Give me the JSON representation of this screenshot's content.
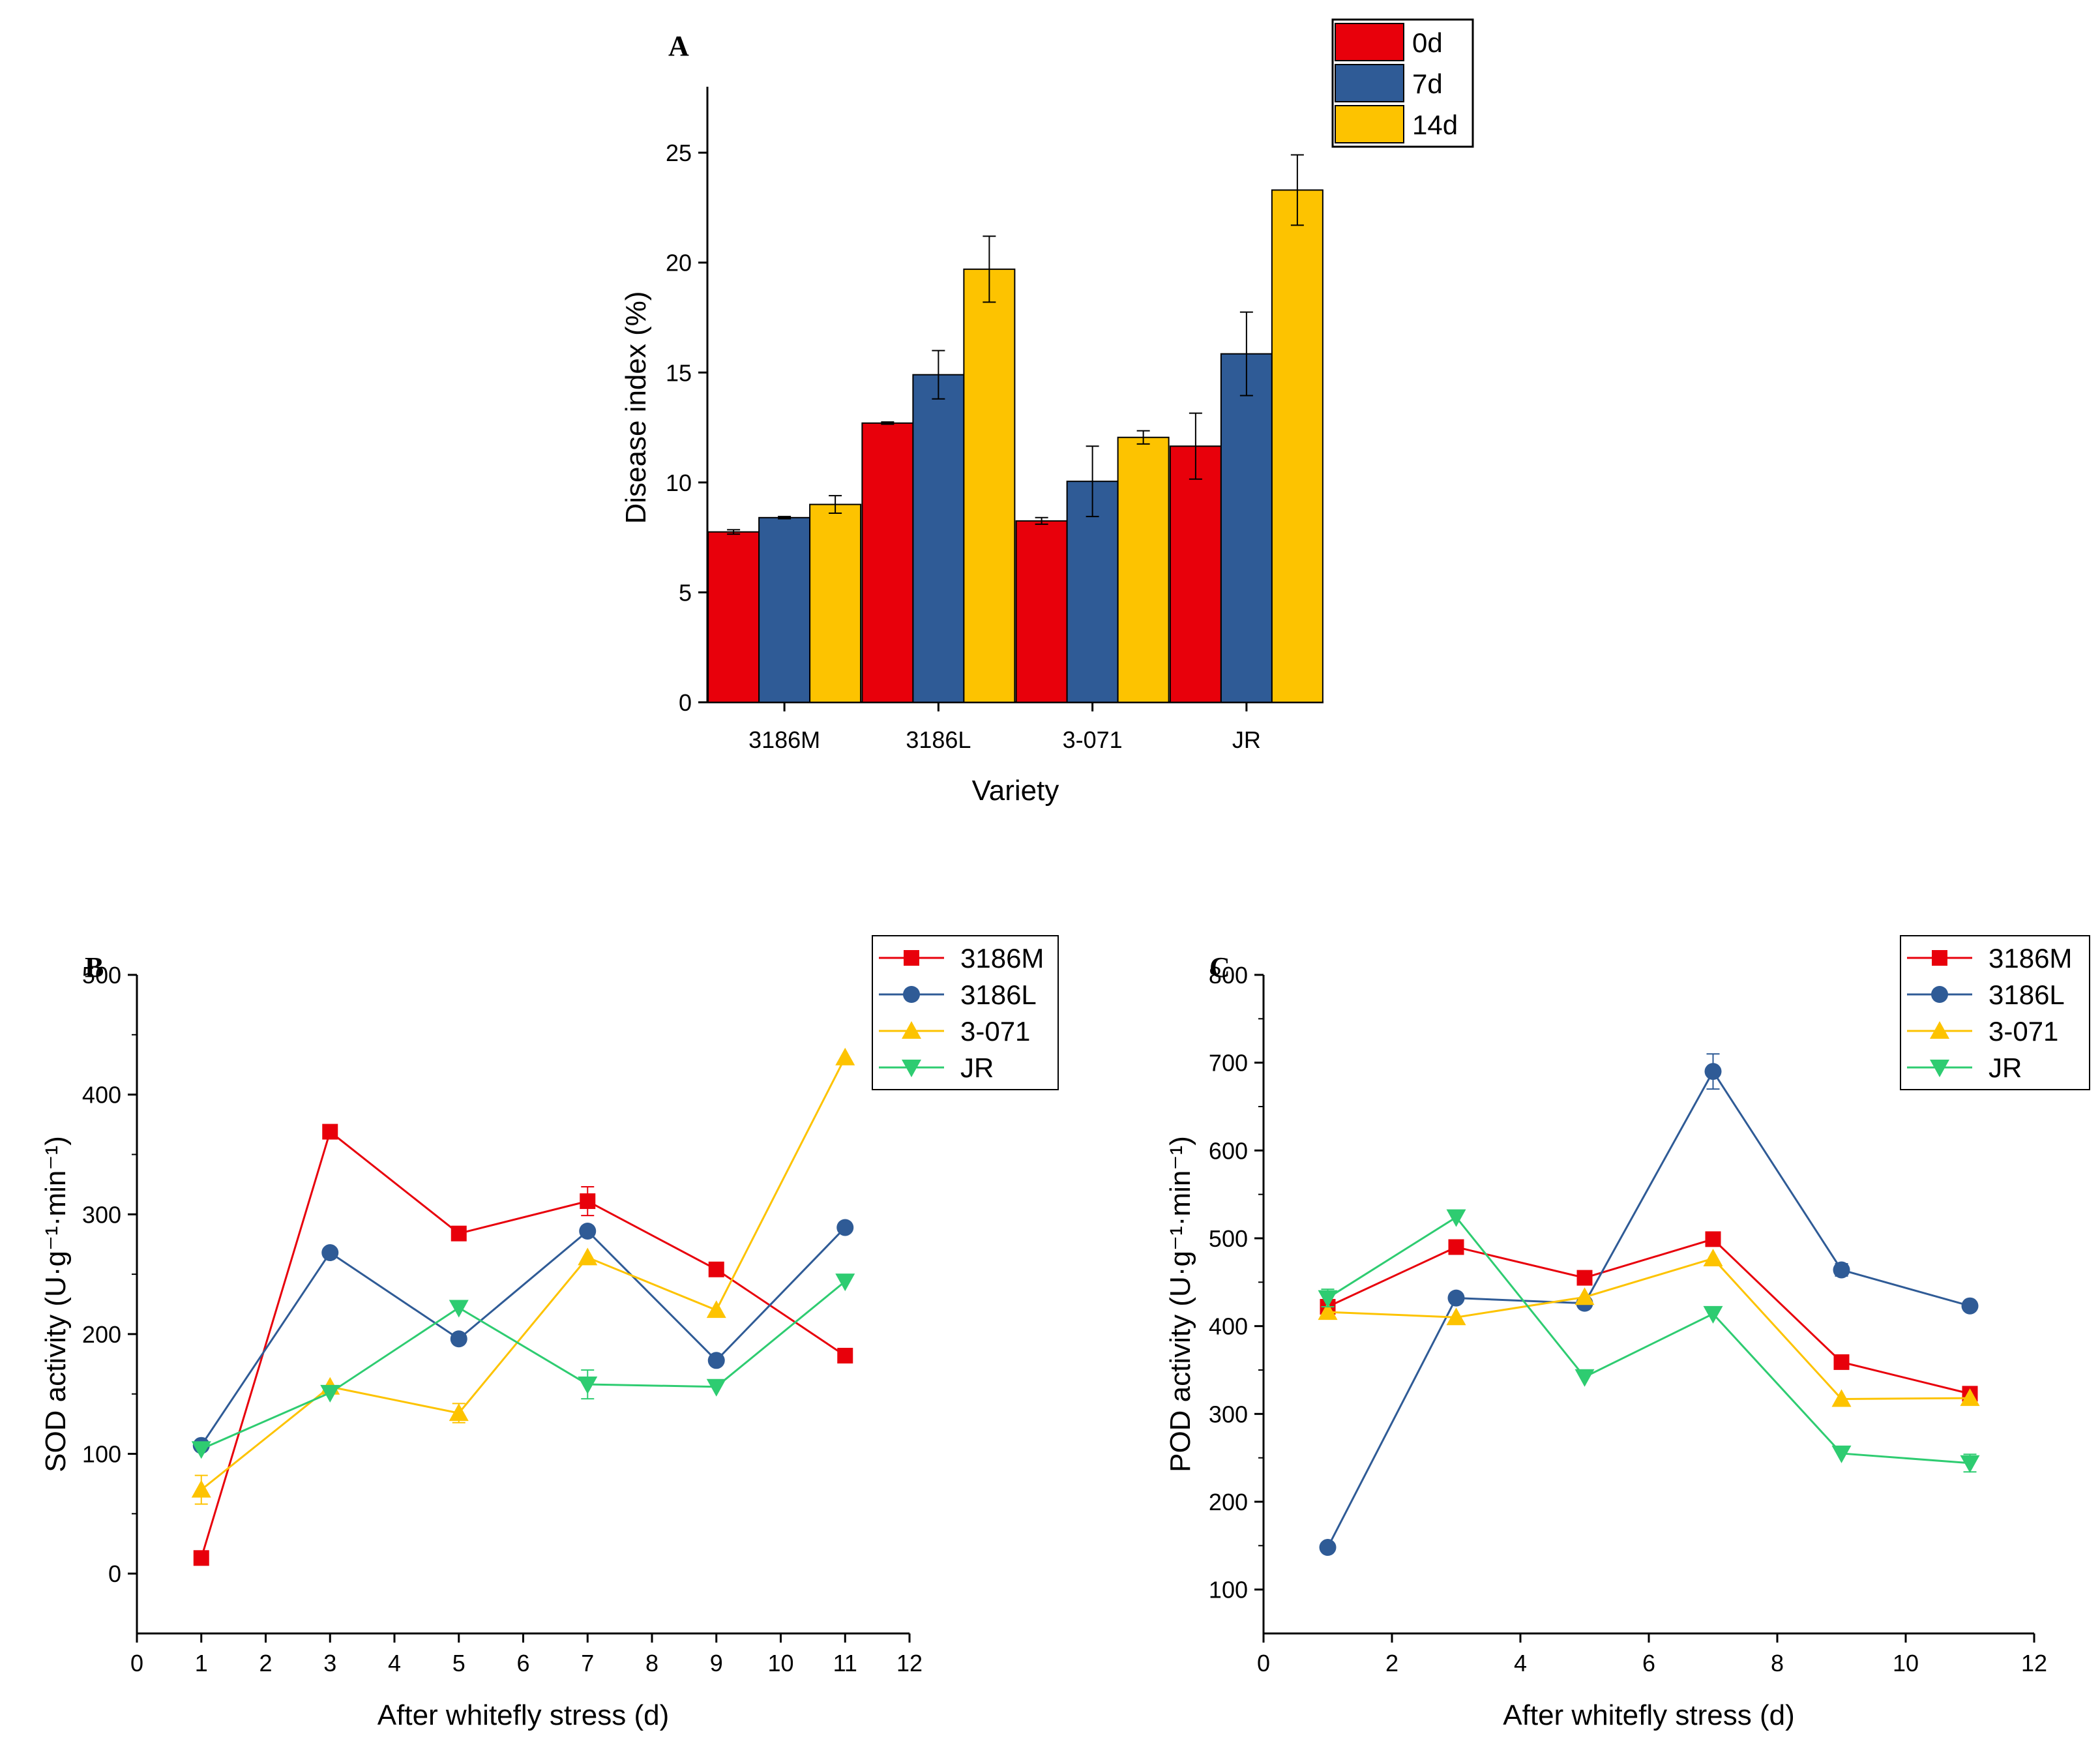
{
  "chart_data": [
    {
      "panel": "A",
      "type": "bar",
      "xlabel": "Variety",
      "ylabel": "Disease index (%)",
      "ylim": [
        0,
        28
      ],
      "yticks": [
        0,
        5,
        10,
        15,
        20,
        25
      ],
      "categories": [
        "3186M",
        "3186L",
        "3-071",
        "JR"
      ],
      "legend_position": "top-right",
      "series": [
        {
          "name": "0d",
          "color": "#e8000b",
          "values": [
            7.75,
            12.7,
            8.25,
            11.65
          ],
          "errors": [
            0.1,
            0.05,
            0.15,
            1.5
          ]
        },
        {
          "name": "7d",
          "color": "#2f5b96",
          "values": [
            8.4,
            14.9,
            10.05,
            15.85
          ],
          "errors": [
            0.05,
            1.1,
            1.6,
            1.9
          ]
        },
        {
          "name": "14d",
          "color": "#fdc300",
          "values": [
            9.0,
            19.7,
            12.05,
            23.3
          ],
          "errors": [
            0.4,
            1.5,
            0.3,
            1.6
          ]
        }
      ]
    },
    {
      "panel": "B",
      "type": "line",
      "xlabel": "After whitefly stress (d)",
      "ylabel": "SOD activity (U·g⁻¹·min⁻¹)",
      "xlim": [
        0,
        12
      ],
      "ylim": [
        -50,
        500
      ],
      "xticks": [
        0,
        1,
        2,
        3,
        4,
        5,
        6,
        7,
        8,
        9,
        10,
        11,
        12
      ],
      "yticks": [
        0,
        100,
        200,
        300,
        400,
        500
      ],
      "x": [
        1,
        3,
        5,
        7,
        9,
        11
      ],
      "legend_position": "top-right",
      "series": [
        {
          "name": "3186M",
          "color": "#e8000b",
          "marker": "square",
          "values": [
            13,
            369,
            284,
            311,
            254,
            182
          ],
          "errors": [
            0,
            0,
            0,
            12,
            0,
            0
          ]
        },
        {
          "name": "3186L",
          "color": "#2f5b96",
          "marker": "circle",
          "values": [
            107,
            268,
            196,
            286,
            178,
            289
          ],
          "errors": [
            0,
            0,
            0,
            0,
            0,
            0
          ]
        },
        {
          "name": "3-071",
          "color": "#fdc300",
          "marker": "triangle-up",
          "values": [
            70,
            156,
            134,
            264,
            220,
            431
          ],
          "errors": [
            12,
            0,
            8,
            0,
            0,
            0
          ]
        },
        {
          "name": "JR",
          "color": "#2ecc71",
          "marker": "triangle-down",
          "values": [
            104,
            151,
            222,
            158,
            156,
            244
          ],
          "errors": [
            0,
            0,
            0,
            12,
            0,
            0
          ]
        }
      ]
    },
    {
      "panel": "C",
      "type": "line",
      "xlabel": "After whitefly stress (d)",
      "ylabel": "POD activity (U·g⁻¹·min⁻¹)",
      "xlim": [
        0,
        12
      ],
      "ylim": [
        50,
        800
      ],
      "xticks": [
        0,
        2,
        4,
        6,
        8,
        10,
        12
      ],
      "yticks": [
        100,
        200,
        300,
        400,
        500,
        600,
        700,
        800
      ],
      "x": [
        1,
        3,
        5,
        7,
        9,
        11
      ],
      "legend_position": "top-right",
      "series": [
        {
          "name": "3186M",
          "color": "#e8000b",
          "marker": "square",
          "values": [
            422,
            490,
            455,
            499,
            359,
            323
          ],
          "errors": [
            0,
            0,
            0,
            0,
            0,
            0
          ]
        },
        {
          "name": "3186L",
          "color": "#2f5b96",
          "marker": "circle",
          "values": [
            148,
            432,
            426,
            690,
            464,
            423
          ],
          "errors": [
            0,
            0,
            0,
            20,
            7,
            0
          ]
        },
        {
          "name": "3-071",
          "color": "#fdc300",
          "marker": "triangle-up",
          "values": [
            416,
            410,
            433,
            477,
            317,
            318
          ],
          "errors": [
            0,
            0,
            0,
            0,
            0,
            0
          ]
        },
        {
          "name": "JR",
          "color": "#2ecc71",
          "marker": "triangle-down",
          "values": [
            432,
            524,
            342,
            414,
            255,
            244
          ],
          "errors": [
            10,
            0,
            0,
            0,
            0,
            10
          ]
        }
      ]
    }
  ]
}
